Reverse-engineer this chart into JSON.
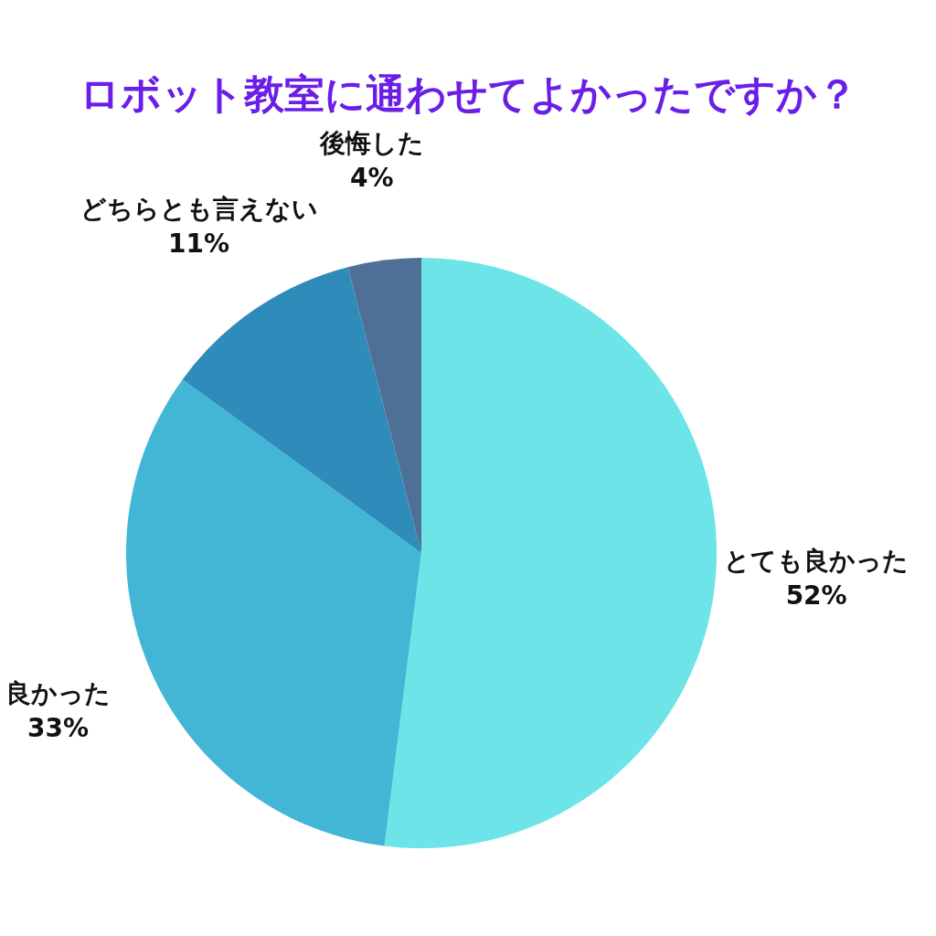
{
  "chart_data": {
    "type": "pie",
    "title": "ロボット教室に通わせてよかったですか？",
    "categories": [
      "とても良かった",
      "良かった",
      "どちらとも言えない",
      "後悔した"
    ],
    "values": [
      52,
      33,
      11,
      4
    ],
    "colors": [
      "#6ce4e8",
      "#43b6d6",
      "#2e8bba",
      "#4f7096"
    ],
    "value_labels": [
      "52%",
      "33%",
      "11%",
      "4%"
    ]
  }
}
